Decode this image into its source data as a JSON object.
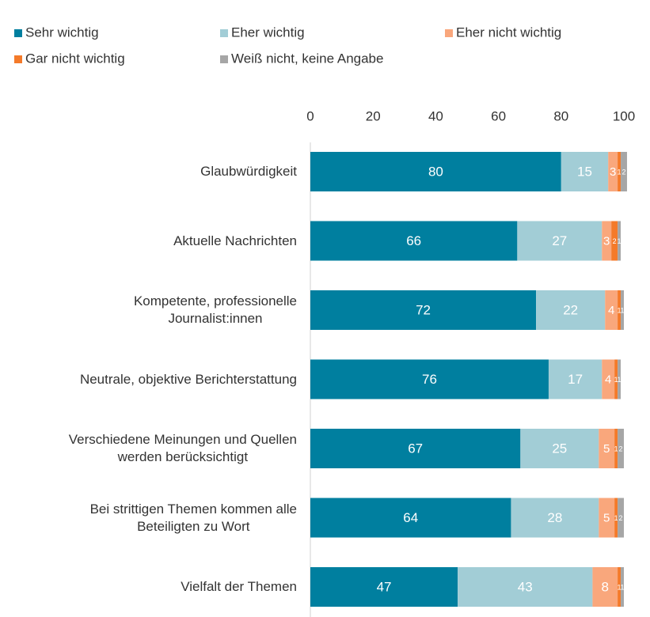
{
  "chart_data": {
    "type": "stacked_bar_horizontal",
    "categories": [
      "Glaubwürdigkeit",
      "Aktuelle Nachrichten",
      "Kompetente, professionelle\nJournalist:innen",
      "Neutrale, objektive Berichterstattung",
      "Verschiedene Meinungen und Quellen\nwerden berücksichtigt",
      "Bei strittigen Themen kommen alle\nBeteiligten zu Wort",
      "Vielfalt der Themen"
    ],
    "series": [
      {
        "name": "Sehr wichtig",
        "color": "#007f9f",
        "values": [
          80,
          66,
          72,
          76,
          67,
          64,
          47
        ]
      },
      {
        "name": "Eher wichtig",
        "color": "#a2cdd6",
        "values": [
          15,
          27,
          22,
          17,
          25,
          28,
          43
        ]
      },
      {
        "name": "Eher nicht wichtig",
        "color": "#f9a77c",
        "values": [
          3,
          3,
          4,
          4,
          5,
          5,
          8
        ]
      },
      {
        "name": "Gar nicht wichtig",
        "color": "#f47a2a",
        "values": [
          1,
          2,
          1,
          1,
          1,
          1,
          1
        ]
      },
      {
        "name": "Weiß nicht, keine Angabe",
        "color": "#a6a6a6",
        "values": [
          2,
          1,
          1,
          1,
          2,
          2,
          1
        ]
      }
    ],
    "xlim": [
      0,
      100
    ],
    "xticks": [
      0,
      20,
      40,
      60,
      80,
      100
    ],
    "legend": "top-left"
  }
}
